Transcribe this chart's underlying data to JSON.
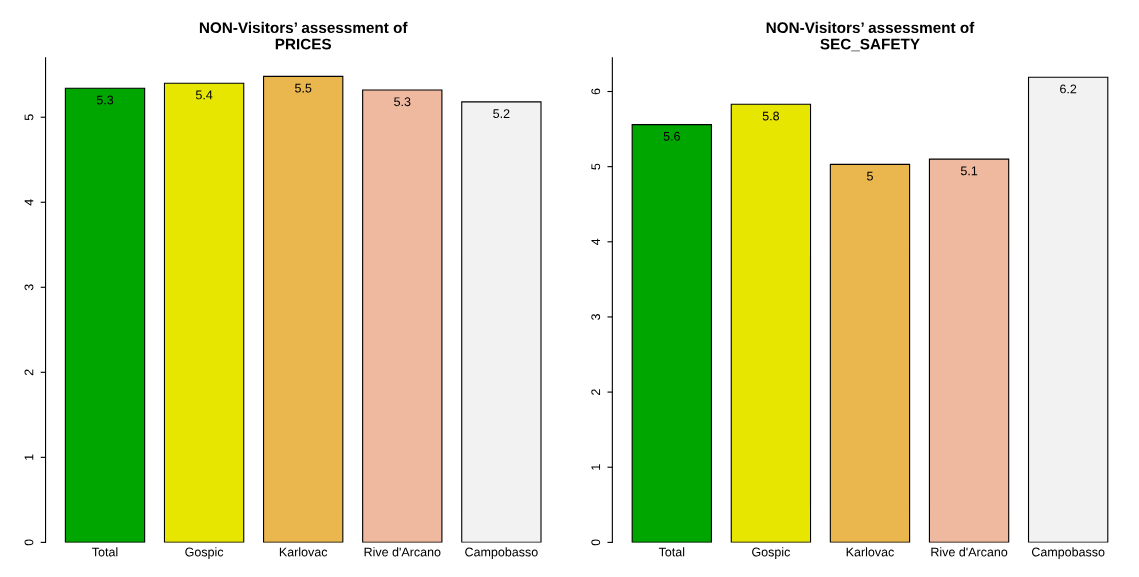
{
  "chart_data": [
    {
      "type": "bar",
      "title": "NON-Visitors’ assessment of\nPRICES",
      "categories": [
        "Total",
        "Gospic",
        "Karlovac",
        "Rive d'Arcano",
        "Campobasso"
      ],
      "values": [
        5.34,
        5.4,
        5.48,
        5.32,
        5.18
      ],
      "value_labels": [
        "5.3",
        "5.4",
        "5.5",
        "5.3",
        "5.2"
      ],
      "colors": [
        "#00a600",
        "#e6e600",
        "#eab64e",
        "#eeb99f",
        "#f2f2f2"
      ],
      "ylim": [
        0,
        5.7
      ],
      "yticks": [
        0,
        1,
        2,
        3,
        4,
        5
      ]
    },
    {
      "type": "bar",
      "title": "NON-Visitors’ assessment of\nSEC_SAFETY",
      "categories": [
        "Total",
        "Gospic",
        "Karlovac",
        "Rive d'Arcano",
        "Campobasso"
      ],
      "values": [
        5.56,
        5.83,
        5.03,
        5.1,
        6.19
      ],
      "value_labels": [
        "5.6",
        "5.8",
        "5",
        "5.1",
        "6.2"
      ],
      "colors": [
        "#00a600",
        "#e6e600",
        "#eab64e",
        "#eeb99f",
        "#f2f2f2"
      ],
      "ylim": [
        0,
        6.45
      ],
      "yticks": [
        0,
        1,
        2,
        3,
        4,
        5,
        6
      ]
    }
  ]
}
